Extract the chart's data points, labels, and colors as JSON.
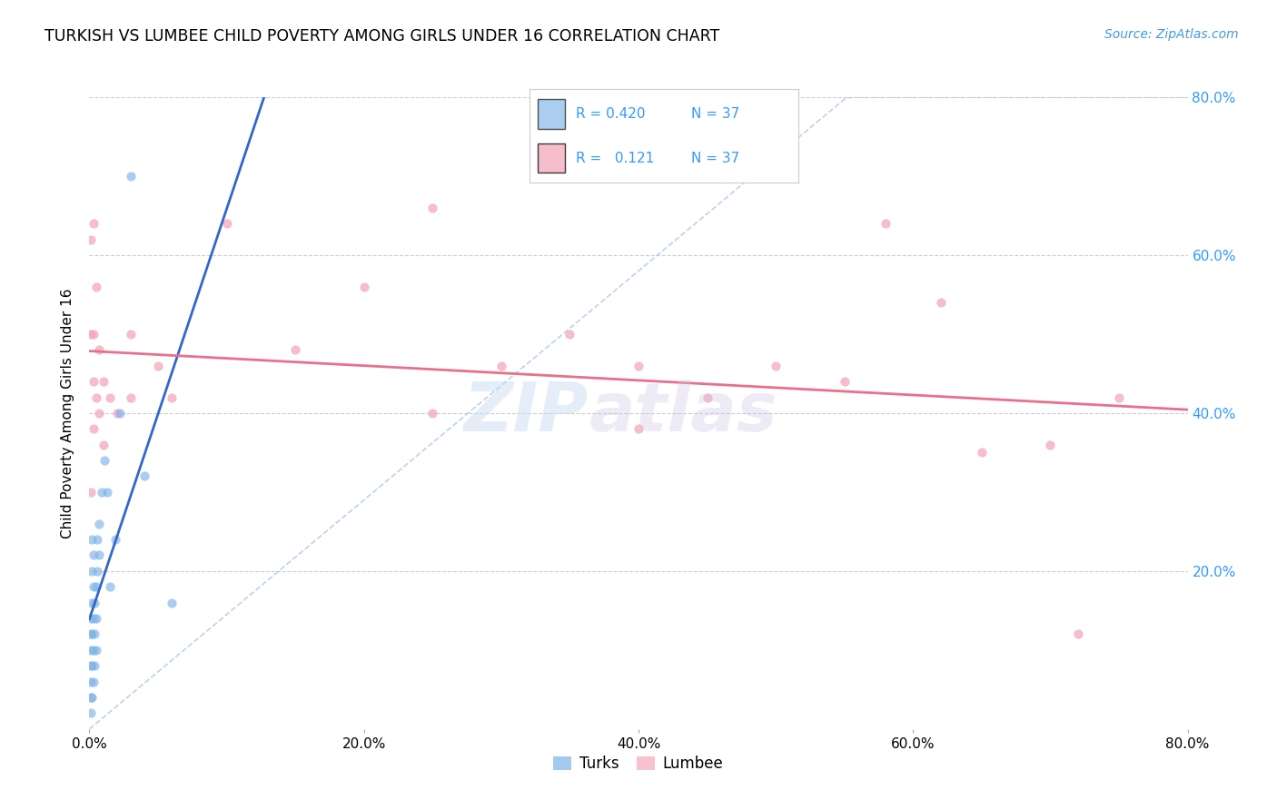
{
  "title": "TURKISH VS LUMBEE CHILD POVERTY AMONG GIRLS UNDER 16 CORRELATION CHART",
  "source": "Source: ZipAtlas.com",
  "ylabel": "Child Poverty Among Girls Under 16",
  "xlim": [
    0,
    0.8
  ],
  "ylim": [
    0,
    0.8
  ],
  "xtick_vals": [
    0.0,
    0.2,
    0.4,
    0.6,
    0.8
  ],
  "ytick_vals": [
    0.0,
    0.2,
    0.4,
    0.6,
    0.8
  ],
  "turks_color": "#7EB3E8",
  "lumbee_color": "#F4A7B9",
  "trendline_turks_color": "#3366CC",
  "trendline_lumbee_color": "#E8708A",
  "R_turks": 0.42,
  "N_turks": 37,
  "R_lumbee": 0.121,
  "N_lumbee": 37,
  "watermark_zip": "ZIP",
  "watermark_atlas": "atlas",
  "background_color": "#ffffff",
  "turks_x": [
    0.001,
    0.001,
    0.001,
    0.001,
    0.001,
    0.001,
    0.001,
    0.002,
    0.002,
    0.002,
    0.002,
    0.002,
    0.002,
    0.003,
    0.003,
    0.003,
    0.003,
    0.003,
    0.004,
    0.004,
    0.004,
    0.005,
    0.005,
    0.005,
    0.006,
    0.006,
    0.007,
    0.007,
    0.009,
    0.011,
    0.013,
    0.015,
    0.019,
    0.022,
    0.03,
    0.04,
    0.06
  ],
  "turks_y": [
    0.02,
    0.04,
    0.06,
    0.08,
    0.1,
    0.12,
    0.14,
    0.04,
    0.08,
    0.12,
    0.16,
    0.2,
    0.24,
    0.06,
    0.1,
    0.14,
    0.18,
    0.22,
    0.08,
    0.12,
    0.16,
    0.1,
    0.14,
    0.18,
    0.2,
    0.24,
    0.22,
    0.26,
    0.3,
    0.34,
    0.3,
    0.18,
    0.24,
    0.4,
    0.7,
    0.32,
    0.16
  ],
  "lumbee_x": [
    0.001,
    0.001,
    0.001,
    0.003,
    0.003,
    0.003,
    0.003,
    0.005,
    0.005,
    0.007,
    0.007,
    0.01,
    0.01,
    0.015,
    0.02,
    0.03,
    0.03,
    0.05,
    0.06,
    0.1,
    0.15,
    0.2,
    0.25,
    0.25,
    0.3,
    0.35,
    0.4,
    0.4,
    0.45,
    0.5,
    0.55,
    0.58,
    0.62,
    0.65,
    0.7,
    0.72,
    0.75
  ],
  "lumbee_y": [
    0.3,
    0.5,
    0.62,
    0.38,
    0.44,
    0.5,
    0.64,
    0.42,
    0.56,
    0.4,
    0.48,
    0.36,
    0.44,
    0.42,
    0.4,
    0.42,
    0.5,
    0.46,
    0.42,
    0.64,
    0.48,
    0.56,
    0.4,
    0.66,
    0.46,
    0.5,
    0.38,
    0.46,
    0.42,
    0.46,
    0.44,
    0.64,
    0.54,
    0.35,
    0.36,
    0.12,
    0.42
  ],
  "turks_size": 55,
  "lumbee_size": 55
}
